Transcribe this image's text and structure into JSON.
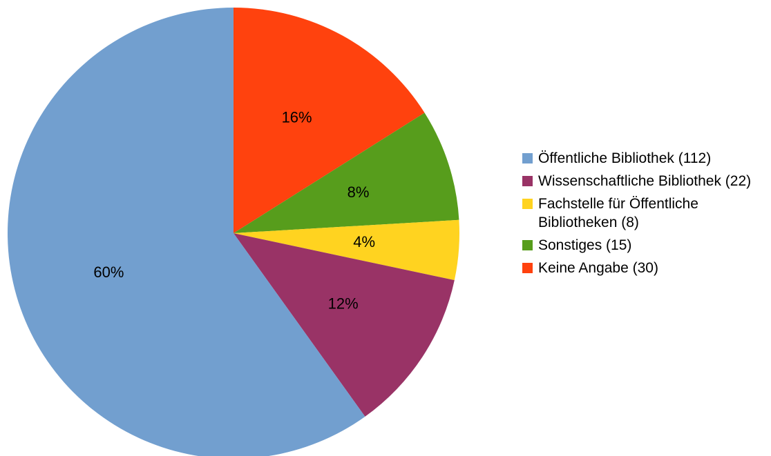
{
  "chart_data": {
    "type": "pie",
    "title": "",
    "start": "12 o'clock, clockwise",
    "categories": [
      "Keine Angabe (30)",
      "Sonstiges (15)",
      "Fachstelle für Öffentliche Bibliotheken (8)",
      "Wissenschaftliche Bibliothek (22)",
      "Öffentliche Bibliothek (112)"
    ],
    "values": [
      30,
      15,
      8,
      22,
      112
    ],
    "percent_labels": [
      "16%",
      "8%",
      "4%",
      "12%",
      "60%"
    ],
    "colors": [
      "#ff420e",
      "#579d1c",
      "#ffd320",
      "#993366",
      "#729fcf"
    ],
    "legend": {
      "position": "right",
      "items": [
        {
          "label": "Öffentliche Bibliothek (112)",
          "color": "#729fcf"
        },
        {
          "label": "Wissenschaftliche Bibliothek (22)",
          "color": "#993366"
        },
        {
          "label": "Fachstelle für Öffentliche Bibliotheken (8)",
          "color": "#ffd320"
        },
        {
          "label": "Sonstiges (15)",
          "color": "#579d1c"
        },
        {
          "label": "Keine Angabe (30)",
          "color": "#ff420e"
        }
      ]
    }
  }
}
